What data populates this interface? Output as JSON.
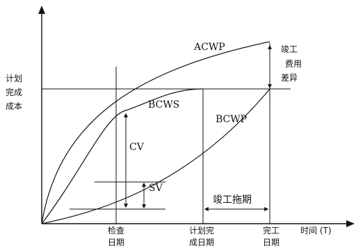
{
  "diagram": {
    "y_axis_label": [
      "计划",
      "完成",
      "成本"
    ],
    "x_axis_label": "时间 (T)",
    "x_tick_labels": [
      [
        "检查",
        "日期"
      ],
      [
        "计划完",
        "成日期"
      ],
      [
        "完工",
        "日期"
      ]
    ],
    "curves": {
      "acwp": "ACWP",
      "bcws": "BCWS",
      "bcwp": "BCWP"
    },
    "variances": {
      "cv": "CV",
      "sv": "SV",
      "final_cost_variance": [
        "竣工",
        "费用",
        "差异"
      ],
      "completion_delay": "竣工拖期"
    }
  }
}
